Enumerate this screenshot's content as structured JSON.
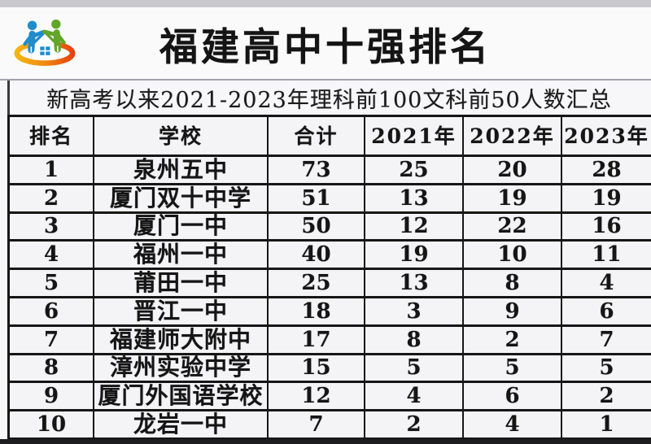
{
  "header": {
    "title": "福建高中十强排名",
    "subtitle": "新高考以来2021-2023年理科前100文科前50人数汇总",
    "logo_icon": "home-family-swoosh-logo"
  },
  "table": {
    "columns": [
      "排名",
      "学校",
      "合计",
      "2021年",
      "2022年",
      "2023年"
    ],
    "column_keys": [
      "rank",
      "school",
      "total",
      "y2021",
      "y2022",
      "y2023"
    ],
    "rows": [
      {
        "rank": "1",
        "school": "泉州五中",
        "total": "73",
        "y2021": "25",
        "y2022": "20",
        "y2023": "28"
      },
      {
        "rank": "2",
        "school": "厦门双十中学",
        "total": "51",
        "y2021": "13",
        "y2022": "19",
        "y2023": "19"
      },
      {
        "rank": "3",
        "school": "厦门一中",
        "total": "50",
        "y2021": "12",
        "y2022": "22",
        "y2023": "16"
      },
      {
        "rank": "4",
        "school": "福州一中",
        "total": "40",
        "y2021": "19",
        "y2022": "10",
        "y2023": "11"
      },
      {
        "rank": "5",
        "school": "莆田一中",
        "total": "25",
        "y2021": "13",
        "y2022": "8",
        "y2023": "4"
      },
      {
        "rank": "6",
        "school": "晋江一中",
        "total": "18",
        "y2021": "3",
        "y2022": "9",
        "y2023": "6"
      },
      {
        "rank": "7",
        "school": "福建师大附中",
        "total": "17",
        "y2021": "8",
        "y2022": "2",
        "y2023": "7"
      },
      {
        "rank": "8",
        "school": "漳州实验中学",
        "total": "15",
        "y2021": "5",
        "y2022": "5",
        "y2023": "5"
      },
      {
        "rank": "9",
        "school": "厦门外国语学校",
        "total": "12",
        "y2021": "4",
        "y2022": "6",
        "y2023": "2"
      },
      {
        "rank": "10",
        "school": "龙岩一中",
        "total": "7",
        "y2021": "2",
        "y2022": "4",
        "y2023": "1"
      }
    ]
  },
  "colors": {
    "table_border": "#161616",
    "text": "#151515",
    "photo_edge_top": "#c9c9cd",
    "photo_edge_bottom": "#1d1d20",
    "logo_blue": "#1f8ccc",
    "logo_green": "#62a629",
    "logo_orange": "#f6a513",
    "logo_red": "#e8430e"
  }
}
